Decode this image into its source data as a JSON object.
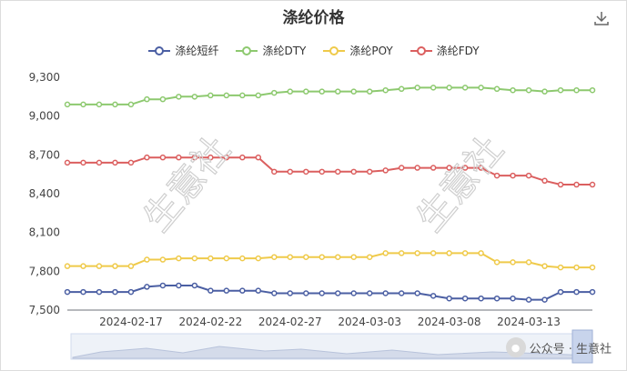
{
  "title": "涤纶价格",
  "toolbar": {
    "download_icon": "download-icon"
  },
  "watermarks": [
    "生意社",
    "生意社"
  ],
  "footer": {
    "label": "公众号 · 生意社",
    "icon": "wechat-icon"
  },
  "colors": {
    "涤纶短纤": "#4b5fa3",
    "涤纶DTY": "#8dc96f",
    "涤纶POY": "#efca4a",
    "涤纶FDY": "#db5f5f"
  },
  "chart_data": {
    "type": "line",
    "title": "涤纶价格",
    "xlabel": "",
    "ylabel": "",
    "legend": "top-center",
    "grid": false,
    "ylim": [
      7500,
      9300
    ],
    "yticks": [
      7500,
      7800,
      8100,
      8400,
      8700,
      9000,
      9300
    ],
    "ytick_labels": [
      "7,500",
      "7,800",
      "8,100",
      "8,400",
      "8,700",
      "9,000",
      "9,300"
    ],
    "x": [
      "2024-02-13",
      "2024-02-14",
      "2024-02-15",
      "2024-02-16",
      "2024-02-17",
      "2024-02-18",
      "2024-02-19",
      "2024-02-20",
      "2024-02-21",
      "2024-02-22",
      "2024-02-23",
      "2024-02-24",
      "2024-02-25",
      "2024-02-26",
      "2024-02-27",
      "2024-02-28",
      "2024-02-29",
      "2024-03-01",
      "2024-03-02",
      "2024-03-03",
      "2024-03-04",
      "2024-03-05",
      "2024-03-06",
      "2024-03-07",
      "2024-03-08",
      "2024-03-09",
      "2024-03-10",
      "2024-03-11",
      "2024-03-12",
      "2024-03-13",
      "2024-03-14",
      "2024-03-15",
      "2024-03-16",
      "2024-03-17"
    ],
    "xtick_labels": [
      "2024-02-17",
      "2024-02-22",
      "2024-02-27",
      "2024-03-03",
      "2024-03-08",
      "2024-03-13"
    ],
    "series": [
      {
        "name": "涤纶短纤",
        "values": [
          7640,
          7640,
          7640,
          7640,
          7640,
          7680,
          7690,
          7690,
          7690,
          7650,
          7650,
          7650,
          7650,
          7630,
          7630,
          7630,
          7630,
          7630,
          7630,
          7630,
          7630,
          7630,
          7630,
          7610,
          7590,
          7590,
          7590,
          7590,
          7590,
          7580,
          7580,
          7640,
          7640,
          7640
        ]
      },
      {
        "name": "涤纶DTY",
        "values": [
          9090,
          9090,
          9090,
          9090,
          9090,
          9130,
          9130,
          9150,
          9150,
          9160,
          9160,
          9160,
          9160,
          9180,
          9190,
          9190,
          9190,
          9190,
          9190,
          9190,
          9200,
          9210,
          9220,
          9220,
          9220,
          9220,
          9220,
          9210,
          9200,
          9200,
          9190,
          9200,
          9200,
          9200
        ]
      },
      {
        "name": "涤纶POY",
        "values": [
          7840,
          7840,
          7840,
          7840,
          7840,
          7890,
          7890,
          7900,
          7900,
          7900,
          7900,
          7900,
          7900,
          7910,
          7910,
          7910,
          7910,
          7910,
          7910,
          7910,
          7940,
          7940,
          7940,
          7940,
          7940,
          7940,
          7940,
          7870,
          7870,
          7870,
          7840,
          7830,
          7830,
          7830
        ]
      },
      {
        "name": "涤纶FDY",
        "values": [
          8640,
          8640,
          8640,
          8640,
          8640,
          8680,
          8680,
          8680,
          8680,
          8680,
          8680,
          8680,
          8680,
          8570,
          8570,
          8570,
          8570,
          8570,
          8570,
          8570,
          8580,
          8600,
          8600,
          8600,
          8600,
          8600,
          8600,
          8540,
          8540,
          8540,
          8500,
          8470,
          8470,
          8470
        ]
      }
    ]
  }
}
